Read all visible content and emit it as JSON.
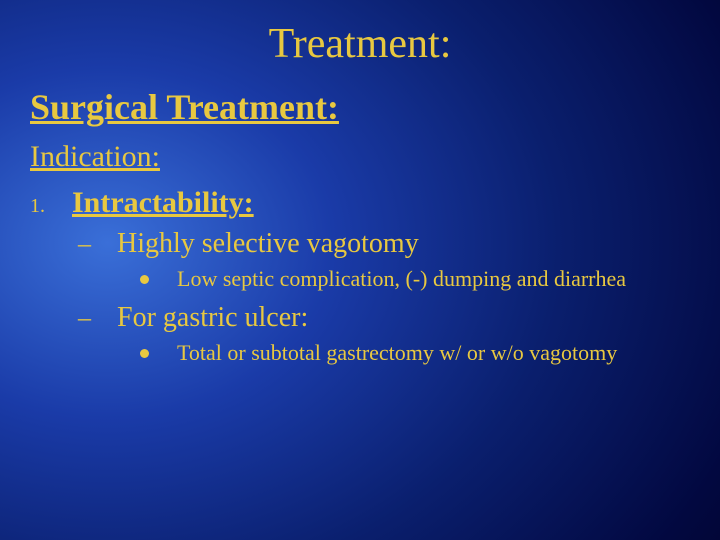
{
  "title": "Treatment:",
  "section": "Surgical Treatment:",
  "subsection": "Indication:",
  "list": {
    "number": "1.",
    "heading": "Intractability:",
    "items": [
      {
        "dash": "–",
        "text": "Highly selective vagotomy",
        "sub": {
          "text": "Low septic complication, (-) dumping and diarrhea"
        }
      },
      {
        "dash": "–",
        "text": "For gastric ulcer:",
        "sub": {
          "text": "Total or subtotal gastrectomy w/ or w/o vagotomy"
        }
      }
    ]
  },
  "colors": {
    "text": "#e8c840",
    "bg_center": "#3a6fd8",
    "bg_edge": "#000018"
  },
  "fonts": {
    "title_size": 42,
    "section_size": 36,
    "subsection_size": 30,
    "numbered_size": 30,
    "dash_size": 28,
    "bullet_size": 22
  }
}
